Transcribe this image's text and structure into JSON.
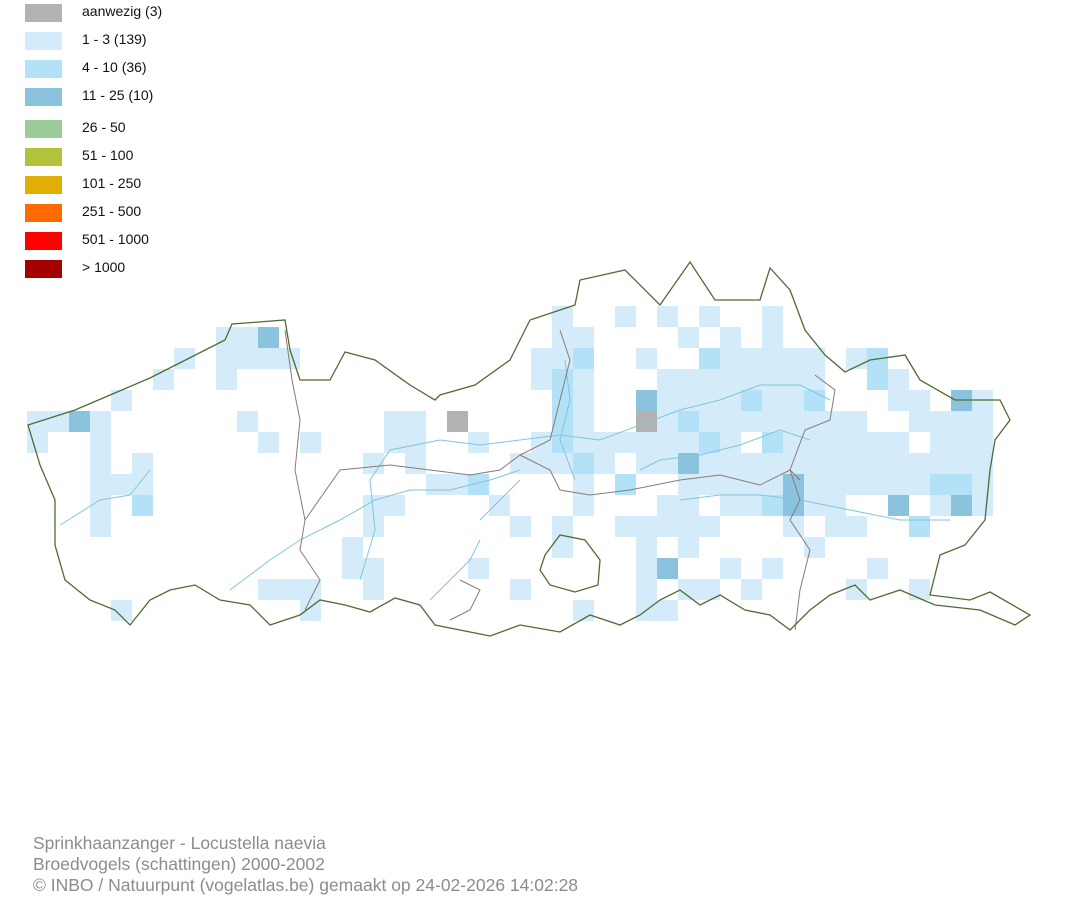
{
  "legend": [
    {
      "label": "aanwezig (3)",
      "color": "#b2b2b2"
    },
    {
      "label": "1 - 3 (139)",
      "color": "#d4ebfa"
    },
    {
      "label": "4 - 10 (36)",
      "color": "#b3e2f8"
    },
    {
      "label": "11 - 25 (10)",
      "color": "#8bc3de"
    },
    {
      "label": "26 - 50",
      "color": "#9bcb98"
    },
    {
      "label": "51 - 100",
      "color": "#b2c23a"
    },
    {
      "label": "101 - 250",
      "color": "#e1ae06"
    },
    {
      "label": "251 - 500",
      "color": "#ff6a00"
    },
    {
      "label": "501 - 1000",
      "color": "#ff0000"
    },
    {
      "label": "> 1000",
      "color": "#a50000"
    }
  ],
  "map": {
    "border_color": "#4f6b34",
    "province_border_color": "#8a7a75",
    "river_color": "#7fc6dd"
  },
  "footer": {
    "species": "Sprinkhaanzanger - Locustella naevia",
    "dataset": "Broedvogels (schattingen) 2000-2002",
    "credit": "© INBO / Natuurpunt (vogelatlas.be) gemaakt op 24-02-2026 14:02:28"
  }
}
